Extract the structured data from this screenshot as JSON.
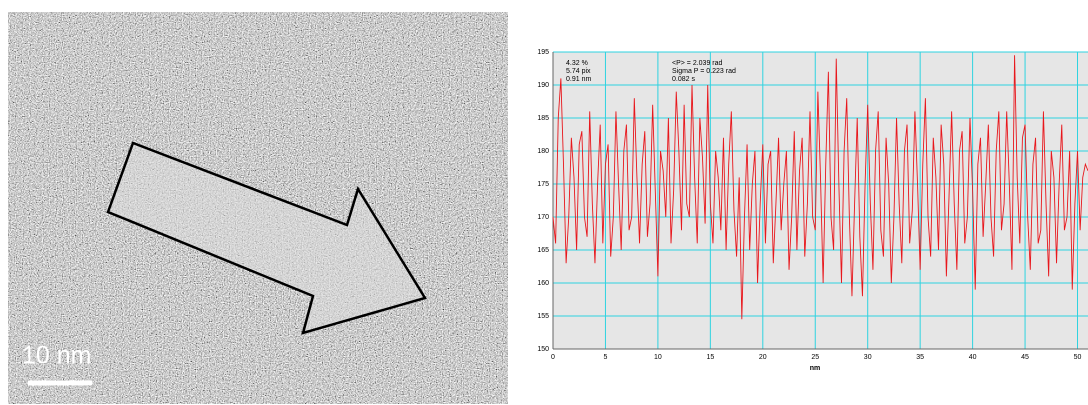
{
  "image": {
    "scale_label": "10 nm"
  },
  "chart_data": {
    "type": "line",
    "xlabel": "nm",
    "annotations": [
      "4.32 %",
      "5.74 pix",
      "0.91 nm",
      "<P> = 2.039 rad",
      "Sigma P = 0.223 rad",
      "0.082 s"
    ],
    "color": "#e8171c",
    "grid": true,
    "xlim": [
      0,
      51
    ],
    "ylim": [
      150,
      195
    ],
    "xticks": [
      0,
      5,
      10,
      15,
      20,
      25,
      30,
      35,
      40,
      45,
      50
    ],
    "yticks": [
      150,
      155,
      160,
      165,
      170,
      175,
      180,
      185,
      190,
      195
    ],
    "x": [
      0,
      0.25,
      0.5,
      0.75,
      1,
      1.25,
      1.5,
      1.75,
      2,
      2.25,
      2.5,
      2.75,
      3,
      3.25,
      3.5,
      3.75,
      4,
      4.25,
      4.5,
      4.75,
      5,
      5.25,
      5.5,
      5.75,
      6,
      6.25,
      6.5,
      6.75,
      7,
      7.25,
      7.5,
      7.75,
      8,
      8.25,
      8.5,
      8.75,
      9,
      9.25,
      9.5,
      9.75,
      10,
      10.25,
      10.5,
      10.75,
      11,
      11.25,
      11.5,
      11.75,
      12,
      12.25,
      12.5,
      12.75,
      13,
      13.25,
      13.5,
      13.75,
      14,
      14.25,
      14.5,
      14.75,
      15,
      15.25,
      15.5,
      15.75,
      16,
      16.25,
      16.5,
      16.75,
      17,
      17.25,
      17.5,
      17.75,
      18,
      18.25,
      18.5,
      18.75,
      19,
      19.25,
      19.5,
      19.75,
      20,
      20.25,
      20.5,
      20.75,
      21,
      21.25,
      21.5,
      21.75,
      22,
      22.25,
      22.5,
      22.75,
      23,
      23.25,
      23.5,
      23.75,
      24,
      24.25,
      24.5,
      24.75,
      25,
      25.25,
      25.5,
      25.75,
      26,
      26.25,
      26.5,
      26.75,
      27,
      27.25,
      27.5,
      27.75,
      28,
      28.25,
      28.5,
      28.75,
      29,
      29.25,
      29.5,
      29.75,
      30,
      30.25,
      30.5,
      30.75,
      31,
      31.25,
      31.5,
      31.75,
      32,
      32.25,
      32.5,
      32.75,
      33,
      33.25,
      33.5,
      33.75,
      34,
      34.25,
      34.5,
      34.75,
      35,
      35.25,
      35.5,
      35.75,
      36,
      36.25,
      36.5,
      36.75,
      37,
      37.25,
      37.5,
      37.75,
      38,
      38.25,
      38.5,
      38.75,
      39,
      39.25,
      39.5,
      39.75,
      40,
      40.25,
      40.5,
      40.75,
      41,
      41.25,
      41.5,
      41.75,
      42,
      42.25,
      42.5,
      42.75,
      43,
      43.25,
      43.5,
      43.75,
      44,
      44.25,
      44.5,
      44.75,
      45,
      45.25,
      45.5,
      45.75,
      46,
      46.25,
      46.5,
      46.75,
      47,
      47.25,
      47.5,
      47.75,
      48,
      48.25,
      48.5,
      48.75,
      49,
      49.25,
      49.5,
      49.75,
      50,
      50.25,
      50.5,
      50.75,
      51
    ],
    "values": [
      170,
      166,
      185,
      191,
      178,
      163,
      170,
      182,
      176,
      165,
      181,
      183,
      170,
      167,
      186,
      172,
      163,
      175,
      184,
      166,
      178,
      181,
      164,
      170,
      186,
      175,
      165,
      180,
      184,
      168,
      170,
      188,
      176,
      166,
      178,
      183,
      167,
      172,
      187,
      174,
      161,
      180,
      177,
      170,
      185,
      166,
      174,
      189,
      180,
      168,
      187,
      172,
      170,
      190,
      176,
      166,
      185,
      179,
      169,
      190,
      172,
      166,
      180,
      176,
      168,
      182,
      165,
      178,
      186,
      171,
      164,
      176,
      154.5,
      170,
      181,
      165,
      175,
      180,
      160,
      172,
      181,
      166,
      178,
      180,
      163,
      172,
      182,
      168,
      175,
      180,
      162,
      170,
      183,
      165,
      177,
      182,
      164,
      172,
      186,
      170,
      168,
      189,
      176,
      160,
      178,
      192,
      170,
      165,
      194,
      175,
      160,
      180,
      188,
      170,
      158,
      172,
      185,
      167,
      158,
      175,
      187,
      172,
      162,
      180,
      186,
      168,
      164,
      182,
      175,
      160,
      170,
      185,
      172,
      163,
      180,
      184,
      166,
      171,
      186,
      175,
      162,
      178,
      188,
      170,
      164,
      182,
      176,
      165,
      184,
      178,
      161,
      173,
      186,
      172,
      162,
      180,
      183,
      166,
      170,
      185,
      174,
      159,
      178,
      182,
      167,
      175,
      184,
      170,
      164,
      180,
      186,
      168,
      172,
      186,
      175,
      162,
      194.5,
      176,
      166,
      182,
      184,
      170,
      162,
      178,
      182,
      166,
      168,
      186,
      172,
      161,
      180,
      176,
      163,
      175,
      184,
      168,
      170,
      180,
      159,
      172,
      180,
      168,
      176,
      178,
      177
    ]
  }
}
